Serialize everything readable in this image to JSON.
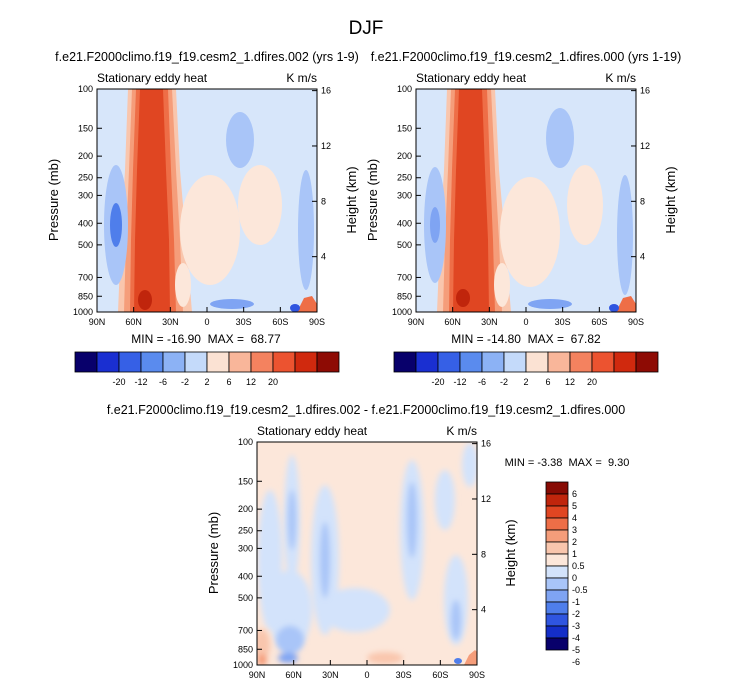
{
  "figure_title": "DJF",
  "colors": {
    "diverging_12": [
      "#08006b",
      "#1a2fd1",
      "#3660e6",
      "#5a8bee",
      "#8cb2f5",
      "#c4dafa",
      "#fbe2d3",
      "#f9b69a",
      "#f4825f",
      "#ec5330",
      "#d0290e",
      "#8e0b04"
    ],
    "diverging_14": [
      "#08006b",
      "#142ec8",
      "#2f55e0",
      "#4f7eeb",
      "#7fa4f3",
      "#a9c5f8",
      "#d3e3fb",
      "#fce7da",
      "#f9c6ad",
      "#f59d7a",
      "#ee6e47",
      "#e04622",
      "#c0250c",
      "#870b04"
    ],
    "background": "#d7e6fa"
  },
  "chart_data": [
    {
      "type": "heatmap",
      "title": "f.e21.F2000climo.f19_f19.cesm2_1.dfires.002 (yrs 1-9)",
      "left_label": "Stationary eddy heat",
      "right_label": "K m/s",
      "xlabel": "",
      "ylabel": "Pressure (mb)",
      "ylabel_right": "Height (km)",
      "x_ticks": [
        "90N",
        "60N",
        "30N",
        "0",
        "30S",
        "60S",
        "90S"
      ],
      "y_ticks": [
        "100",
        "150",
        "200",
        "250",
        "300",
        "400",
        "500",
        "700",
        "850",
        "1000"
      ],
      "y_right_ticks": [
        "16",
        "12",
        "8",
        "4"
      ],
      "stats": "MIN = -16.90  MAX =  68.77",
      "min": -16.9,
      "max": 68.77,
      "colorbar_labels": [
        "-20",
        "-12",
        "-6",
        "-2",
        "2",
        "6",
        "12",
        "20"
      ],
      "colorbar_levels": [
        -20,
        -16,
        -12,
        -8,
        -6,
        -4,
        -2,
        0,
        2,
        4,
        6,
        8,
        12,
        16,
        20
      ]
    },
    {
      "type": "heatmap",
      "title": "f.e21.F2000climo.f19_f19.cesm2_1.dfires.000 (yrs 1-19)",
      "left_label": "Stationary eddy heat",
      "right_label": "K m/s",
      "xlabel": "",
      "ylabel": "Pressure (mb)",
      "ylabel_right": "Height (km)",
      "x_ticks": [
        "90N",
        "60N",
        "30N",
        "0",
        "30S",
        "60S",
        "90S"
      ],
      "y_ticks": [
        "100",
        "150",
        "200",
        "250",
        "300",
        "400",
        "500",
        "700",
        "850",
        "1000"
      ],
      "y_right_ticks": [
        "16",
        "12",
        "8",
        "4"
      ],
      "stats": "MIN = -14.80  MAX =  67.82",
      "min": -14.8,
      "max": 67.82,
      "colorbar_labels": [
        "-20",
        "-12",
        "-6",
        "-2",
        "2",
        "6",
        "12",
        "20"
      ],
      "colorbar_levels": [
        -20,
        -16,
        -12,
        -8,
        -6,
        -4,
        -2,
        0,
        2,
        4,
        6,
        8,
        12,
        16,
        20
      ]
    },
    {
      "type": "heatmap",
      "title": "f.e21.F2000climo.f19_f19.cesm2_1.dfires.002 - f.e21.F2000climo.f19_f19.cesm2_1.dfires.000",
      "left_label": "Stationary eddy heat",
      "right_label": "K m/s",
      "xlabel": "",
      "ylabel": "Pressure (mb)",
      "ylabel_right": "Height (km)",
      "x_ticks": [
        "90N",
        "60N",
        "30N",
        "0",
        "30S",
        "60S",
        "90S"
      ],
      "y_ticks": [
        "100",
        "150",
        "200",
        "250",
        "300",
        "400",
        "500",
        "700",
        "850",
        "1000"
      ],
      "y_right_ticks": [
        "16",
        "12",
        "8",
        "4"
      ],
      "stats": "MIN = -3.38  MAX =  9.30",
      "min": -3.38,
      "max": 9.3,
      "colorbar_labels": [
        "6",
        "5",
        "4",
        "3",
        "2",
        "1",
        "0.5",
        "0",
        "-0.5",
        "-1",
        "-2",
        "-3",
        "-4",
        "-5",
        "-6"
      ],
      "colorbar_levels": [
        -6,
        -5,
        -4,
        -3,
        -2,
        -1,
        -0.5,
        0,
        0.5,
        1,
        2,
        3,
        4,
        5,
        6
      ]
    }
  ]
}
